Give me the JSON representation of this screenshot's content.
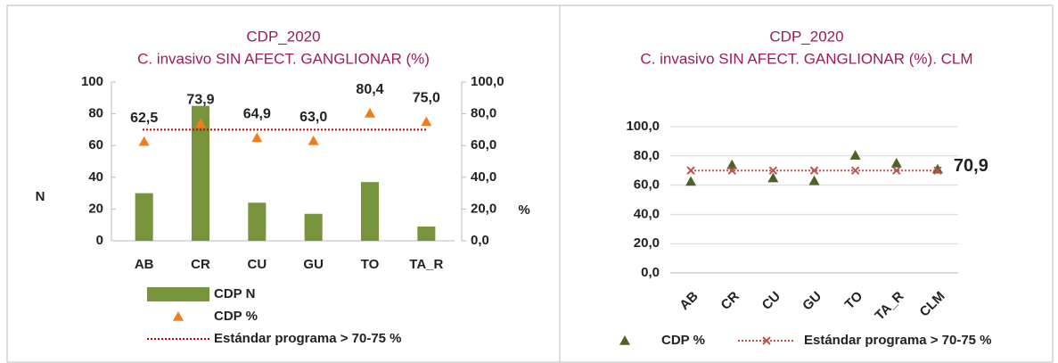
{
  "chart_data": [
    {
      "type": "bar",
      "title": "CDP_2020",
      "subtitle": "C. invasivo SIN AFECT. GANGLIONAR (%)",
      "y_label": "N",
      "y2_label": "%",
      "categories": [
        "AB",
        "CR",
        "CU",
        "GU",
        "TO",
        "TA_R"
      ],
      "ylim": [
        0,
        100
      ],
      "yticks": [
        0,
        20,
        40,
        60,
        80,
        100
      ],
      "y2lim": [
        0,
        100
      ],
      "y2ticks": [
        {
          "value": 0,
          "label": "0,0"
        },
        {
          "value": 20,
          "label": "20,0"
        },
        {
          "value": 40,
          "label": "40,0"
        },
        {
          "value": 60,
          "label": "60,0"
        },
        {
          "value": 80,
          "label": "80,0"
        },
        {
          "value": 100,
          "label": "100,0"
        }
      ],
      "series": [
        {
          "name": "CDP N",
          "type": "bar",
          "color": "#77933c",
          "values": [
            30,
            85,
            24,
            17,
            37,
            9
          ]
        },
        {
          "name": "CDP %",
          "type": "scatter",
          "axis": "y2",
          "color": "#f07d1a",
          "values": [
            62.5,
            73.9,
            64.9,
            63.0,
            80.4,
            75.0
          ],
          "value_labels": [
            "62,5",
            "73,9",
            "64,9",
            "63,0",
            "80,4",
            "75,0"
          ]
        },
        {
          "name": "Estándar programa > 70-75 %",
          "type": "line",
          "axis": "y2",
          "color": "#c00000",
          "values": [
            70,
            70,
            70,
            70,
            70,
            70
          ]
        }
      ]
    },
    {
      "type": "scatter",
      "title": "CDP_2020",
      "subtitle": "C. invasivo SIN AFECT. GANGLIONAR (%). CLM",
      "categories": [
        "AB",
        "CR",
        "CU",
        "GU",
        "TO",
        "TA_R",
        "CLM"
      ],
      "ylim": [
        0,
        100
      ],
      "grid": true,
      "yticks": [
        {
          "value": 0,
          "label": "0,0"
        },
        {
          "value": 20,
          "label": "20,0"
        },
        {
          "value": 40,
          "label": "40,0"
        },
        {
          "value": 60,
          "label": "60,0"
        },
        {
          "value": 80,
          "label": "80,0"
        },
        {
          "value": 100,
          "label": "100,0"
        }
      ],
      "series": [
        {
          "name": "CDP %",
          "type": "scatter",
          "color": "#4f6228",
          "values": [
            62.5,
            73.9,
            64.9,
            63.0,
            80.4,
            75.0,
            70.9
          ],
          "value_labels": [
            null,
            null,
            null,
            null,
            null,
            null,
            "70,9"
          ]
        },
        {
          "name": "Estándar programa > 70-75 %",
          "type": "line",
          "color": "#c0504d",
          "values": [
            70,
            70,
            70,
            70,
            70,
            70,
            70
          ]
        }
      ]
    }
  ]
}
